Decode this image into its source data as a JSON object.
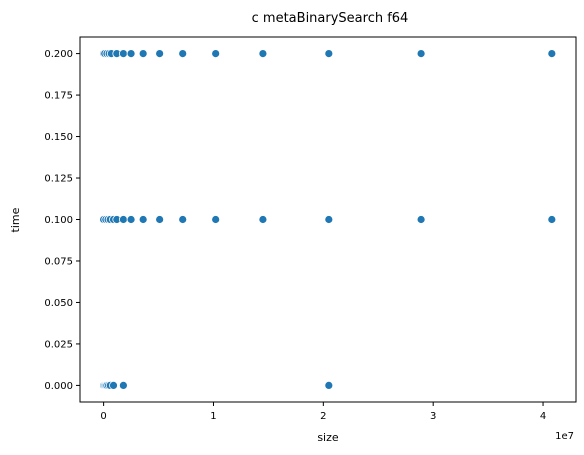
{
  "chart_data": {
    "type": "scatter",
    "title": "c metaBinarySearch f64",
    "xlabel": "size",
    "ylabel": "time",
    "x_offset_label": "1e7",
    "xlim": [
      -2150000,
      43000000
    ],
    "ylim": [
      -0.01,
      0.21
    ],
    "x_ticks": [
      0,
      10000000,
      20000000,
      30000000,
      40000000
    ],
    "x_tick_labels": [
      "0",
      "1",
      "2",
      "3",
      "4"
    ],
    "y_ticks": [
      0.0,
      0.025,
      0.05,
      0.075,
      0.1,
      0.125,
      0.15,
      0.175,
      0.2
    ],
    "y_tick_labels": [
      "0.000",
      "0.025",
      "0.050",
      "0.075",
      "0.100",
      "0.125",
      "0.150",
      "0.175",
      "0.200"
    ],
    "grid": false,
    "legend": "none",
    "marker_color": "#1f77b4",
    "series": [
      {
        "points": [
          {
            "x": 0,
            "y": 0.2
          },
          {
            "x": 100000,
            "y": 0.2
          },
          {
            "x": 300000,
            "y": 0.2
          },
          {
            "x": 500000,
            "y": 0.2
          },
          {
            "x": 700000,
            "y": 0.2
          },
          {
            "x": 1200000,
            "y": 0.2
          },
          {
            "x": 1800000,
            "y": 0.2
          },
          {
            "x": 2500000,
            "y": 0.2
          },
          {
            "x": 3600000,
            "y": 0.2
          },
          {
            "x": 5100000,
            "y": 0.2
          },
          {
            "x": 7200000,
            "y": 0.2
          },
          {
            "x": 10200000,
            "y": 0.2
          },
          {
            "x": 14500000,
            "y": 0.2
          },
          {
            "x": 20500000,
            "y": 0.2
          },
          {
            "x": 28900000,
            "y": 0.2
          },
          {
            "x": 40800000,
            "y": 0.2
          },
          {
            "x": 0,
            "y": 0.1
          },
          {
            "x": 200000,
            "y": 0.1
          },
          {
            "x": 400000,
            "y": 0.1
          },
          {
            "x": 600000,
            "y": 0.1
          },
          {
            "x": 900000,
            "y": 0.1
          },
          {
            "x": 1200000,
            "y": 0.1
          },
          {
            "x": 1800000,
            "y": 0.1
          },
          {
            "x": 2500000,
            "y": 0.1
          },
          {
            "x": 3600000,
            "y": 0.1
          },
          {
            "x": 5100000,
            "y": 0.1
          },
          {
            "x": 7200000,
            "y": 0.1
          },
          {
            "x": 10200000,
            "y": 0.1
          },
          {
            "x": 14500000,
            "y": 0.1
          },
          {
            "x": 20500000,
            "y": 0.1
          },
          {
            "x": 28900000,
            "y": 0.1
          },
          {
            "x": 40800000,
            "y": 0.1
          },
          {
            "x": 0,
            "y": 0.0
          },
          {
            "x": 100000,
            "y": 0.0
          },
          {
            "x": 200000,
            "y": 0.0
          },
          {
            "x": 300000,
            "y": 0.0
          },
          {
            "x": 450000,
            "y": 0.0
          },
          {
            "x": 600000,
            "y": 0.0
          },
          {
            "x": 900000,
            "y": 0.0
          },
          {
            "x": 1800000,
            "y": 0.0
          },
          {
            "x": 20500000,
            "y": 0.0
          }
        ]
      }
    ]
  }
}
